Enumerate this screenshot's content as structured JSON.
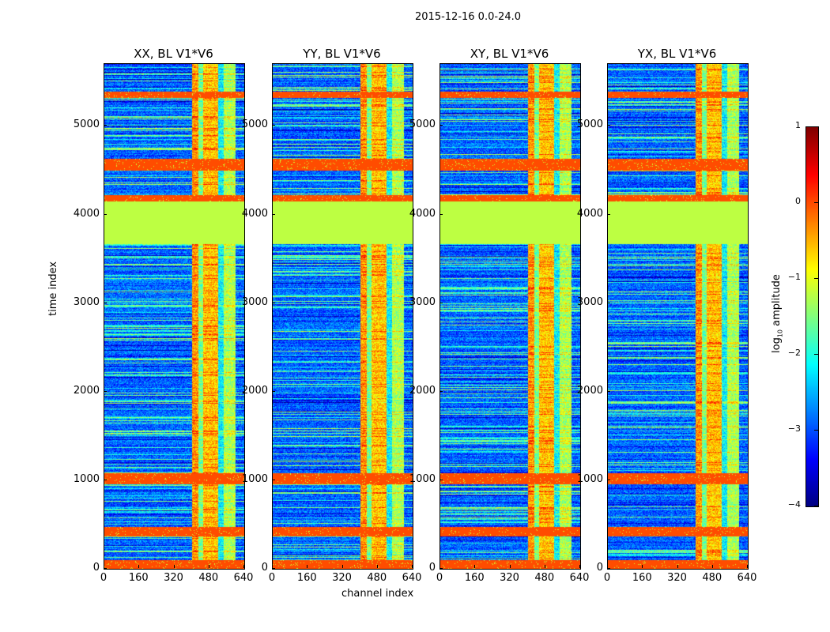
{
  "chart_data": {
    "type": "heatmap",
    "title": "2015-12-16 0.0-24.0",
    "panels": [
      {
        "title": "XX, BL V1*V6"
      },
      {
        "title": "YY, BL V1*V6"
      },
      {
        "title": "XY, BL V1*V6"
      },
      {
        "title": "YX, BL V1*V6"
      }
    ],
    "xlabel": "channel index",
    "ylabel": "time index",
    "xlim": [
      0,
      640
    ],
    "ylim": [
      0,
      5700
    ],
    "xticks": [
      "0",
      "160",
      "320",
      "480",
      "640"
    ],
    "yticks": [
      "0",
      "1000",
      "2000",
      "3000",
      "4000",
      "5000"
    ],
    "colorbar": {
      "label": "log10 amplitude",
      "label_main": "log",
      "label_sub": "10",
      "label_rest": " amplitude",
      "range": [
        -4,
        1
      ],
      "ticks": [
        "1",
        "0",
        "−1",
        "−2",
        "−3",
        "−4"
      ],
      "colormap": "jet"
    },
    "flagged_bands_time": [
      [
        0,
        105
      ],
      [
        370,
        480
      ],
      [
        960,
        1080
      ],
      [
        4150,
        4220
      ],
      [
        4500,
        4630
      ],
      [
        5320,
        5390
      ]
    ],
    "flat_band_time": [
      3670,
      4150
    ],
    "flagged_value": 0.0,
    "flat_value": -1.2,
    "channel_profile": [
      {
        "range": [
          0,
          400
        ],
        "value": -2.9
      },
      {
        "range": [
          400,
          430
        ],
        "value": -0.4
      },
      {
        "range": [
          430,
          450
        ],
        "value": -1.6
      },
      {
        "range": [
          450,
          520
        ],
        "value": -0.6
      },
      {
        "range": [
          520,
          545
        ],
        "value": -2.2
      },
      {
        "range": [
          545,
          600
        ],
        "value": -1.3
      },
      {
        "range": [
          600,
          640
        ],
        "value": -2.9
      }
    ]
  }
}
